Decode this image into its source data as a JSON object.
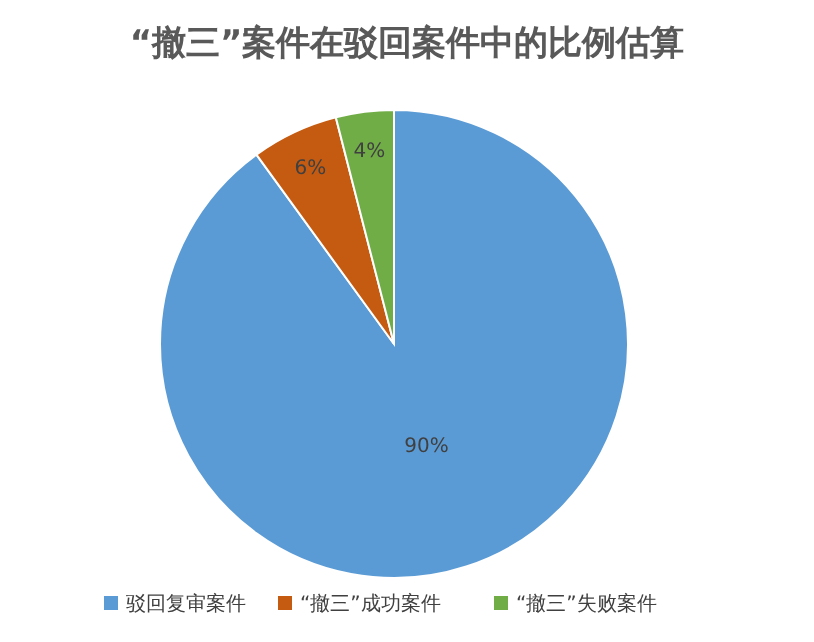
{
  "chart_data": {
    "type": "pie",
    "title": "“撤三”案件在驳回案件中的比例估算",
    "categories": [
      "驳回复审案件",
      "“撤三”成功案件",
      "“撤三”失败案件"
    ],
    "values": [
      90,
      6,
      4
    ],
    "colors": [
      "#5b9bd5",
      "#c55a11",
      "#70ad47"
    ],
    "value_labels": [
      "90%",
      "6%",
      "4%"
    ],
    "legend": "bottom"
  }
}
